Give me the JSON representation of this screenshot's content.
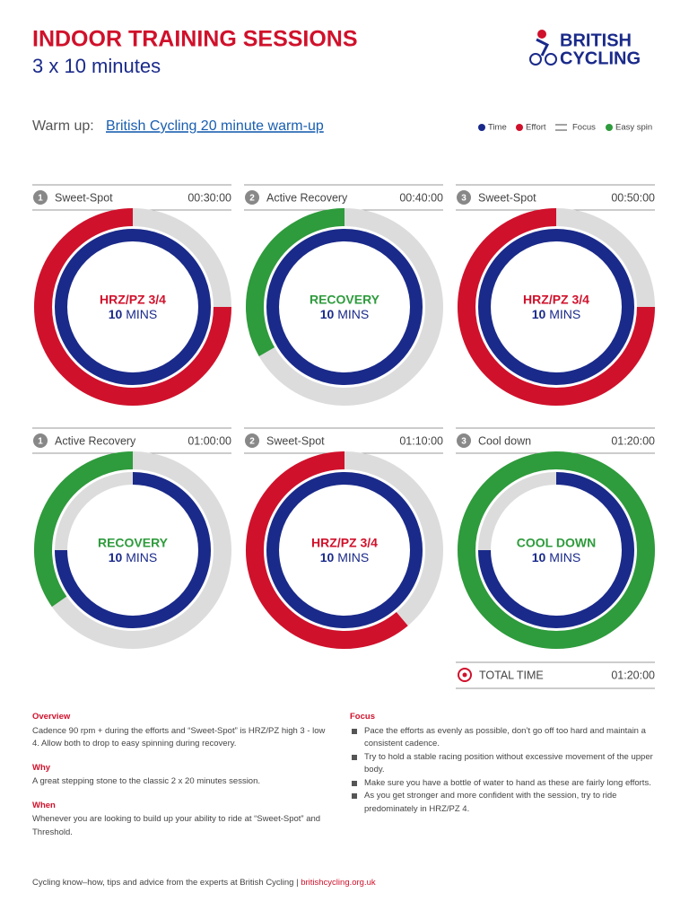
{
  "header": {
    "title": "INDOOR TRAINING SESSIONS",
    "subtitle": "3 x 10 minutes",
    "logo": [
      "BRITISH",
      "CYCLING"
    ]
  },
  "warmup": {
    "label": "Warm up:",
    "link": "British Cycling 20 minute warm-up"
  },
  "legend": [
    "Time",
    "Effort",
    "Focus",
    "Easy spin"
  ],
  "sessions": [
    {
      "number": 1,
      "name": "Sweet-Spot",
      "time": "00:30:00",
      "zone": "HRZ/PZ 3/4",
      "duration": 10,
      "unit": "MINS"
    },
    {
      "number": 2,
      "name": "Active Recovery",
      "time": "00:40:00",
      "zone": "RECOVERY",
      "duration": 10,
      "unit": "MINS"
    },
    {
      "number": 3,
      "name": "Sweet-Spot",
      "time": "00:50:00",
      "zone": "HRZ/PZ 3/4",
      "duration": 10,
      "unit": "MINS"
    },
    {
      "number": 1,
      "name": "Active Recovery",
      "time": "01:00:00",
      "zone": "RECOVERY",
      "duration": 10,
      "unit": "MINS"
    },
    {
      "number": 2,
      "name": "Sweet-Spot",
      "time": "01:10:00",
      "zone": "HRZ/PZ 3/4",
      "duration": 10,
      "unit": "MINS"
    },
    {
      "number": 3,
      "name": "Cool down",
      "time": "01:20:00",
      "zone": "COOL DOWN",
      "duration": 10,
      "unit": "MINS"
    }
  ],
  "total": {
    "label": "TOTAL TIME",
    "time": "01:20:00"
  },
  "notes": {
    "left": [
      {
        "heading": "Overview",
        "text": "Cadence 90 rpm + during the efforts and “Sweet-Spot” is HRZ/PZ high 3 - low 4. Allow both to drop to easy spinning during recovery."
      },
      {
        "heading": "Why",
        "text": "A great stepping stone to the classic 2 x 20 minutes session."
      },
      {
        "heading": "When",
        "text": "Whenever you are looking to build up your ability to ride at “Sweet-Spot” and Threshold."
      }
    ],
    "focus": {
      "heading": "Focus",
      "items": [
        "Pace the efforts as evenly as possible, don’t go off too hard and maintain a consistent cadence.",
        "Try to hold a stable racing position without excessive movement of the upper body.",
        "Make sure you have a bottle of water to hand as these are fairly long efforts.",
        "As you get stronger and more confident with the session, try to ride predominately in HRZ/PZ 4."
      ]
    }
  },
  "footer": {
    "text": "Cycling know–how, tips and advice from the experts at British Cycling |",
    "link": "britishcycling.org.uk"
  }
}
